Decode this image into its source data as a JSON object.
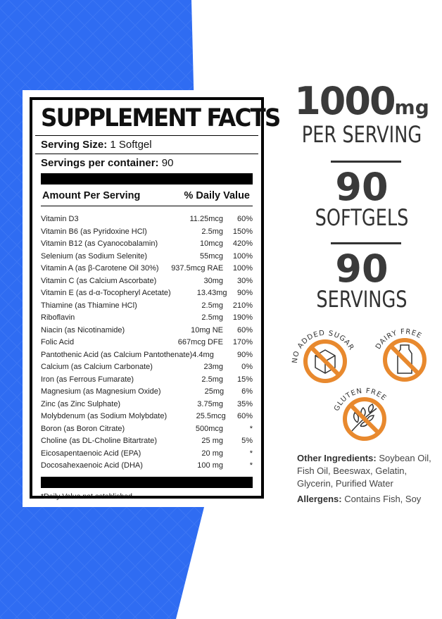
{
  "label": {
    "title": "SUPPLEMENT FACTS",
    "serving_size_label": "Serving Size:",
    "serving_size": "1 Softgel",
    "servings_label": "Servings per container:",
    "servings": "90",
    "col_amount": "Amount Per Serving",
    "col_dv": "% Daily Value",
    "rows": [
      {
        "name": "Vitamin D3",
        "amount": "11.25mcg",
        "dv": "60%"
      },
      {
        "name": "Vitamin B6 (as Pyridoxine HCl)",
        "amount": "2.5mg",
        "dv": "150%"
      },
      {
        "name": "Vitamin B12 (as Cyanocobalamin)",
        "amount": "10mcg",
        "dv": "420%"
      },
      {
        "name": "Selenium (as Sodium Selenite)",
        "amount": "55mcg",
        "dv": "100%"
      },
      {
        "name": "Vitamin A (as β-Carotene Oil 30%)",
        "amount": "937.5mcg RAE",
        "dv": "100%"
      },
      {
        "name": "Vitamin C (as Calcium Ascorbate)",
        "amount": "30mg",
        "dv": "30%"
      },
      {
        "name": "Vitamin E (as d-α-Tocopheryl Acetate)",
        "amount": "13.43mg",
        "dv": "90%"
      },
      {
        "name": "Thiamine (as Thiamine HCl)",
        "amount": "2.5mg",
        "dv": "210%"
      },
      {
        "name": "Riboflavin",
        "amount": "2.5mg",
        "dv": "190%"
      },
      {
        "name": "Niacin (as Nicotinamide)",
        "amount": "10mg NE",
        "dv": "60%"
      },
      {
        "name": "Folic Acid",
        "amount": "667mcg DFE",
        "dv": "170%"
      },
      {
        "name": "Pantothenic Acid (as Calcium Pantothenate)",
        "amount": "4.4mg",
        "dv": "90%"
      },
      {
        "name": "Calcium (as Calcium Carbonate)",
        "amount": "23mg",
        "dv": "0%"
      },
      {
        "name": "Iron (as Ferrous Fumarate)",
        "amount": "2.5mg",
        "dv": "15%"
      },
      {
        "name": "Magnesium (as Magnesium Oxide)",
        "amount": "25mg",
        "dv": "6%"
      },
      {
        "name": "Zinc (as Zinc Sulphate)",
        "amount": "3.75mg",
        "dv": "35%"
      },
      {
        "name": "Molybdenum (as Sodium Molybdate)",
        "amount": "25.5mcg",
        "dv": "60%"
      },
      {
        "name": "Boron (as Boron Citrate)",
        "amount": "500mcg",
        "dv": "*"
      },
      {
        "name": "Choline (as DL-Choline Bitartrate)",
        "amount": "25 mg",
        "dv": "5%"
      },
      {
        "name": "Eicosapentaenoic Acid (EPA)",
        "amount": "20 mg",
        "dv": "*"
      },
      {
        "name": "Docosahexaenoic Acid (DHA)",
        "amount": "100 mg",
        "dv": "*"
      }
    ],
    "footnote": "*Daily Value not established."
  },
  "stats": {
    "dose": "1000",
    "dose_unit": "mg",
    "per_serving": "PER SERVING",
    "softgels_count": "90",
    "softgels": "SOFTGELS",
    "servings_count": "90",
    "servings": "SERVINGS"
  },
  "badges": [
    "NO ADDED SUGAR",
    "DAIRY FREE",
    "GLUTEN FREE"
  ],
  "other_ingredients_label": "Other Ingredients:",
  "other_ingredients": "Soybean Oil, Fish Oil, Beeswax, Gelatin, Glycerin, Purified Water",
  "allergens_label": "Allergens:",
  "allergens": "Contains Fish, Soy",
  "colors": {
    "blue": "#2f6cf2",
    "orange": "#e8892e"
  }
}
